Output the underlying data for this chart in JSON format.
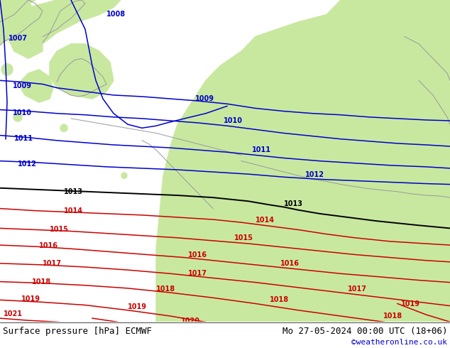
{
  "fig_width": 6.34,
  "fig_height": 4.9,
  "dpi": 100,
  "sea_color": "#d8d8e8",
  "land_green_color": "#c8e8a0",
  "footer_left": "Surface pressure [hPa] ECMWF",
  "footer_right": "Mo 27-05-2024 00:00 UTC (18+06)",
  "footer_credit": "©weatheronline.co.uk",
  "footer_color": "#000000",
  "footer_credit_color": "#0000cc",
  "blue_color": "#0000cc",
  "black_color": "#000000",
  "red_color": "#cc0000",
  "gray_color": "#888888",
  "label_fontsize": 7,
  "footer_fontsize": 9,
  "credit_fontsize": 8
}
